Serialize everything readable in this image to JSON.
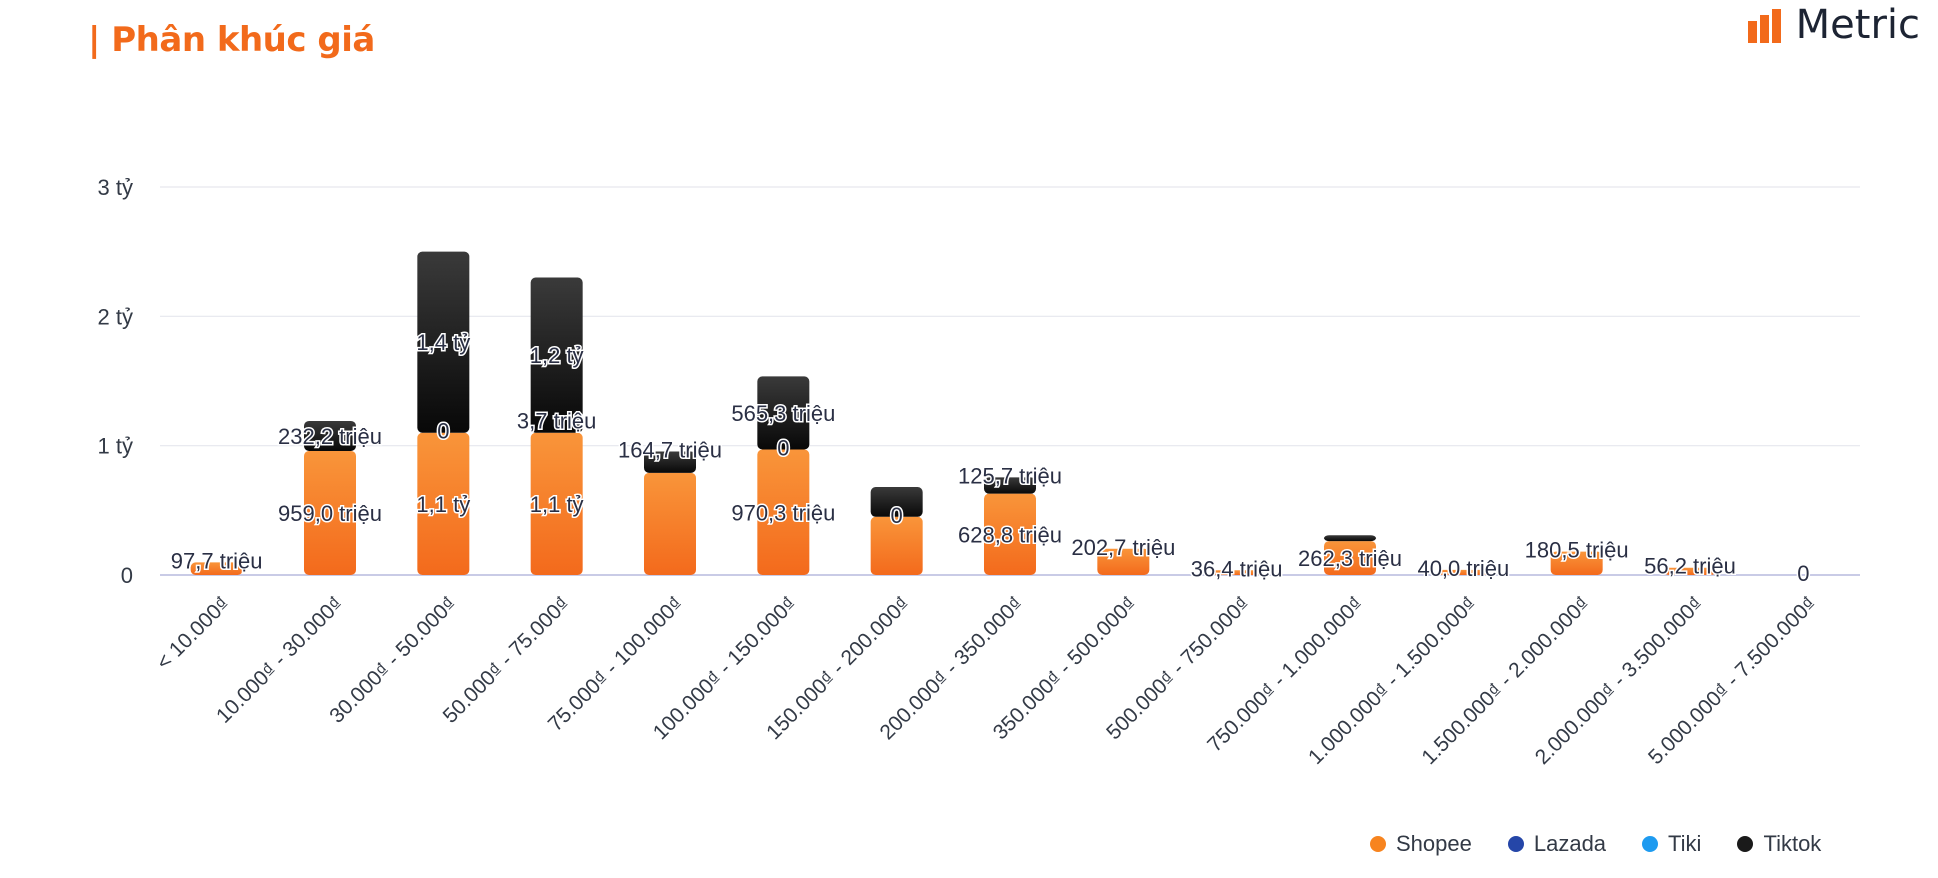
{
  "header": {
    "title": "| Phân khúc giá"
  },
  "logo": {
    "text": "Metric",
    "icon": "bar-chart-logo-icon",
    "color": "#F26A1B"
  },
  "chart_data": {
    "type": "bar",
    "stacked": true,
    "categories": [
      "< 10.000₫",
      "10.000₫ - 30.000₫",
      "30.000₫ - 50.000₫",
      "50.000₫ - 75.000₫",
      "75.000₫ - 100.000₫",
      "100.000₫ - 150.000₫",
      "150.000₫ - 200.000₫",
      "200.000₫ - 350.000₫",
      "350.000₫ - 500.000₫",
      "500.000₫ - 750.000₫",
      "750.000₫ - 1.000.000₫",
      "1.000.000₫ - 1.500.000₫",
      "1.500.000₫ - 2.000.000₫",
      "2.000.000₫ - 3.500.000₫",
      "5.000.000₫ - 7.500.000₫"
    ],
    "series": [
      {
        "name": "Shopee",
        "color": "#F7841F",
        "values": [
          97.7,
          959.0,
          1100,
          1100,
          790,
          970.3,
          450,
          628.8,
          202.7,
          36.4,
          262.3,
          40.0,
          180.5,
          56.2,
          0
        ],
        "labels": [
          "97,7 triệu",
          "959,0 triệu",
          "1,1 tỷ",
          "1,1 tỷ",
          "",
          "970,3 triệu",
          "",
          "628,8 triệu",
          "202,7 triệu",
          "36,4 triệu",
          "262,3 triệu",
          "40,0 triệu",
          "180,5 triệu",
          "56,2 triệu",
          "0"
        ]
      },
      {
        "name": "Lazada",
        "color": "#2546A8",
        "values": [
          0,
          0,
          0,
          0,
          0,
          0,
          0,
          0,
          0,
          0,
          0,
          0,
          0,
          0,
          0
        ],
        "labels": [
          "",
          "",
          "0",
          "",
          "",
          "0",
          "0",
          "",
          "",
          "",
          "",
          "",
          "",
          "",
          ""
        ]
      },
      {
        "name": "Tiki",
        "color": "#1E9BF0",
        "values": [
          0,
          0,
          0,
          0,
          0,
          0,
          0,
          0,
          0,
          0,
          0,
          0,
          0,
          0,
          0
        ],
        "labels": [
          "",
          "",
          "",
          "",
          "",
          "",
          "",
          "",
          "",
          "",
          "",
          "",
          "",
          "",
          ""
        ]
      },
      {
        "name": "Tiktok",
        "color": "#1A1A1A",
        "values": [
          0,
          232.2,
          1400,
          1200,
          164.7,
          565.3,
          230,
          125.7,
          0,
          0,
          45,
          0,
          0,
          0,
          0
        ],
        "labels": [
          "",
          "232,2 triệu",
          "1,4 tỷ",
          "1,2 tỷ",
          "164,7 triệu",
          "565,3 triệu",
          "",
          "125,7 triệu",
          "",
          "",
          "",
          "",
          "",
          "",
          ""
        ]
      }
    ],
    "extra_labels": [
      {
        "category_index": 3,
        "text": "3,7 triệu"
      }
    ],
    "yaxis": {
      "ticks": [
        0,
        1000,
        2000,
        3000
      ],
      "tick_labels": [
        "0",
        "1 tỷ",
        "2 tỷ",
        "3 tỷ"
      ],
      "ylim": [
        0,
        3000
      ],
      "unit": "triệu"
    },
    "grid": true,
    "legend_position": "bottom-right",
    "title": "",
    "xlabel": "",
    "ylabel": ""
  },
  "legend": {
    "items": [
      {
        "label": "Shopee",
        "color": "#F7841F"
      },
      {
        "label": "Lazada",
        "color": "#2546A8"
      },
      {
        "label": "Tiki",
        "color": "#1E9BF0"
      },
      {
        "label": "Tiktok",
        "color": "#1A1A1A"
      }
    ]
  }
}
